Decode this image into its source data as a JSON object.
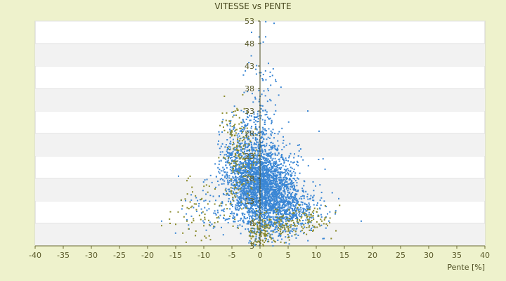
{
  "chart_data": {
    "type": "scatter",
    "title": "VITESSE vs PENTE",
    "xlabel": "Pente [%]",
    "ylabel": "",
    "xlim": [
      -40,
      40
    ],
    "ylim": [
      3,
      53
    ],
    "x_ticks": [
      -40,
      -35,
      -30,
      -25,
      -20,
      -15,
      -10,
      -5,
      0,
      5,
      10,
      15,
      20,
      25,
      30,
      35,
      40
    ],
    "y_ticks": [
      3,
      8,
      13,
      18,
      23,
      28,
      33,
      38,
      43,
      48,
      53
    ],
    "grid": "horizontal alternating bands",
    "legend": "none",
    "series": [
      {
        "color": "#3a86d4",
        "clusters": [
          {
            "center": [
              0.5,
              16
            ],
            "spread": [
              3.0,
              5.0
            ],
            "count": 2600,
            "skew_x": -0.1
          },
          {
            "center": [
              -3.0,
              22
            ],
            "spread": [
              2.0,
              4.0
            ],
            "count": 300
          },
          {
            "center": [
              5.0,
              11
            ],
            "spread": [
              3.0,
              2.5
            ],
            "count": 400
          },
          {
            "center": [
              -1.0,
              29
            ],
            "spread": [
              1.5,
              4.0
            ],
            "count": 120
          },
          {
            "center": [
              0.5,
              38
            ],
            "spread": [
              1.5,
              6.0
            ],
            "count": 60
          },
          {
            "center": [
              -8.0,
              12
            ],
            "spread": [
              3.0,
              3.0
            ],
            "count": 80
          }
        ],
        "points": [
          [
            8.5,
            33
          ],
          [
            10.5,
            28.5
          ],
          [
            14.0,
            13.5
          ],
          [
            18.0,
            8.5
          ],
          [
            -17.5,
            8.5
          ],
          [
            2.5,
            52.5
          ],
          [
            -1.5,
            50.5
          ],
          [
            1.0,
            49.5
          ],
          [
            -13.0,
            8.8
          ],
          [
            -14.5,
            18.5
          ]
        ]
      },
      {
        "color": "#8a8a2a",
        "clusters": [
          {
            "center": [
              -3.5,
              22
            ],
            "spread": [
              1.5,
              5.0
            ],
            "count": 140
          },
          {
            "center": [
              0,
              6
            ],
            "spread": [
              1.0,
              1.8
            ],
            "count": 110
          },
          {
            "center": [
              8,
              9
            ],
            "spread": [
              2.5,
              1.5
            ],
            "count": 90
          },
          {
            "center": [
              -10,
              10
            ],
            "spread": [
              3.0,
              3.5
            ],
            "count": 70
          },
          {
            "center": [
              4,
              7
            ],
            "spread": [
              2.0,
              1.5
            ],
            "count": 60
          },
          {
            "center": [
              -5,
              30
            ],
            "spread": [
              1.0,
              2.0
            ],
            "count": 30
          }
        ],
        "points": [
          [
            -17.5,
            7.5
          ],
          [
            -16,
            8
          ],
          [
            -15,
            7.8
          ],
          [
            12,
            7.5
          ],
          [
            9.5,
            6.5
          ],
          [
            10.5,
            7.8
          ],
          [
            11,
            8.5
          ],
          [
            -12,
            15
          ],
          [
            -13,
            17.5
          ]
        ]
      }
    ]
  }
}
